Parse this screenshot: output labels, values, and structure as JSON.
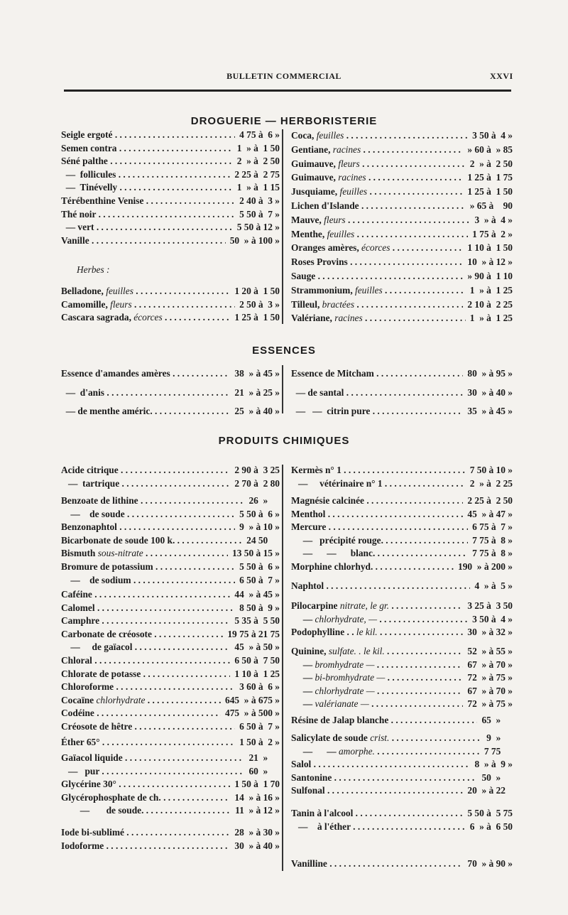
{
  "header": {
    "title": "BULLETIN COMMERCIAL",
    "page": "XXVI"
  },
  "droguerie": {
    "title": "DROGUERIE — HERBORISTERIE",
    "left": [
      {
        "name": "Seigle ergoté",
        "price": "4 75 à  6 »"
      },
      {
        "name": "Semen contra",
        "price": "1  » à  1 50"
      },
      {
        "name": "Séné palthe",
        "price": "2  » à  2 50"
      },
      {
        "name": "  —  follicules",
        "price": "2 25 à  2 75"
      },
      {
        "name": "  —  Tinévelly",
        "price": "1  » à  1 15"
      },
      {
        "name": "Térébenthine Venise",
        "price": "2 40 à  3 »"
      },
      {
        "name": "Thé noir",
        "price": "5 50 à  7 »"
      },
      {
        "name": "  — vert",
        "price": "5 50 à 12 »"
      },
      {
        "name": "Vanille",
        "price": "50  » à 100 »"
      }
    ],
    "herbes_label": "Herbes :",
    "herbes": [
      {
        "name": "Belladone, ",
        "em": "feuilles",
        "price": "1 20 à  1 50"
      },
      {
        "name": "Camomille, ",
        "em": "fleurs",
        "price": "2 50 à  3 »"
      },
      {
        "name": "Cascara sagrada, ",
        "em": "écorces",
        "price": "1 25 à  1 50"
      }
    ],
    "right": [
      {
        "name": "Coca, ",
        "em": "feuilles",
        "price": "3 50 à  4 »"
      },
      {
        "name": "Gentiane, ",
        "em": "racines",
        "price": "» 60 à  » 85"
      },
      {
        "name": "Guimauve, ",
        "em": "fleurs",
        "price": "2  » à  2 50"
      },
      {
        "name": "Guimauve, ",
        "em": "racines",
        "price": "1 25 à  1 75"
      },
      {
        "name": "Jusquiame, ",
        "em": "feuilles",
        "price": "1 25 à  1 50"
      },
      {
        "name": "Lichen d'Islande",
        "price": "» 65 à    90"
      },
      {
        "name": "Mauve, ",
        "em": "fleurs",
        "price": "3  » à  4 »"
      },
      {
        "name": "Menthe, ",
        "em": "feuilles",
        "price": "1 75 à  2 »"
      },
      {
        "name": "Oranges amères, ",
        "em": "écorces",
        "price": "1 10 à  1 50"
      },
      {
        "name": "Roses Provins",
        "price": "10  » à 12 »"
      },
      {
        "name": "Sauge",
        "price": "» 90 à  1 10"
      },
      {
        "name": "Strammonium, ",
        "em": "feuilles",
        "price": "1  » à  1 25"
      },
      {
        "name": "Tilleul, ",
        "em": "bractées",
        "price": "2 10 à  2 25"
      },
      {
        "name": "Valériane, ",
        "em": "racines",
        "price": "1  » à  1 25"
      }
    ]
  },
  "essences": {
    "title": "ESSENCES",
    "left": [
      {
        "name": "Essence d'amandes amères",
        "price": "38  » à 45 »"
      },
      {
        "name": "  —  d'anis",
        "price": "21  » à 25 »"
      },
      {
        "name": "  — de menthe améric.",
        "price": "25  » à 40 »"
      }
    ],
    "right": [
      {
        "name": "Essence de Mitcham",
        "price": "80  » à 95 »"
      },
      {
        "name": "  — de santal",
        "price": "30  » à 40 »"
      },
      {
        "name": "  —   —  citrin pure",
        "price": "35  » à 45 »"
      }
    ]
  },
  "chimiques": {
    "title": "PRODUITS CHIMIQUES",
    "left": [
      [
        {
          "name": "Acide citrique",
          "price": "2 90 à  3 25"
        },
        {
          "name": "   —  tartrique",
          "price": "2 70 à  2 80"
        }
      ],
      [
        {
          "name": "Benzoate de lithine",
          "price": "26  »     "
        },
        {
          "name": "    —    de soude",
          "price": "5 50 à  6 »"
        },
        {
          "name": "Benzonaphtol",
          "price": "9  » à 10 »"
        },
        {
          "name": "Bicarbonate de soude 100 k.",
          "price": "24 50     "
        },
        {
          "name": "Bismuth ",
          "em": "sous-nitrate",
          "price": "13 50 à 15 »"
        },
        {
          "name": "Bromure de potassium",
          "price": "5 50 à  6 »"
        },
        {
          "name": "    —    de sodium",
          "price": "6 50 à  7 »"
        }
      ],
      [
        {
          "name": "Caféine",
          "price": "44  » à 45 »"
        },
        {
          "name": "Calomel",
          "price": "8 50 à  9 »"
        },
        {
          "name": "Camphre",
          "price": "5 35 à  5 50"
        },
        {
          "name": "Carbonate de créosote",
          "price": "19 75 à 21 75"
        },
        {
          "name": "    —     de gaïacol",
          "price": "45  » à 50 »"
        },
        {
          "name": "Chloral",
          "price": "6 50 à  7 50"
        },
        {
          "name": "Chlorate de potasse",
          "price": "1 10 à  1 25"
        },
        {
          "name": "Chloroforme",
          "price": "3 60 à  6 »"
        },
        {
          "name": "Cocaïne ",
          "em": "chlorhydrate",
          "price": "645  » à 675 »"
        },
        {
          "name": "Codéine",
          "price": "475  » à 500 »"
        },
        {
          "name": "Créosote de hêtre",
          "price": "6 50 à  7 »"
        }
      ],
      [
        {
          "name": "Éther 65°",
          "price": "1 50 à  2 »"
        }
      ],
      [
        {
          "name": "Gaïacol liquide",
          "price": "21  »     "
        },
        {
          "name": "   —   pur",
          "price": "60  »     "
        },
        {
          "name": "Glycérine 30°",
          "price": "1 50 à  1 70"
        },
        {
          "name": "Glycérophosphate de ch.",
          "price": "14  » à 16 »"
        },
        {
          "name": "        —       de soude.",
          "price": "11  » à 12 »"
        }
      ],
      [
        {
          "name": "Iode bi-sublimé",
          "price": "28  » à 30 »"
        },
        {
          "name": "Iodoforme",
          "price": "30  » à 40 »"
        }
      ]
    ],
    "right": [
      [
        {
          "name": "Kermès n° 1",
          "price": "7 50 à 10 »"
        },
        {
          "name": "   —     vétérinaire n° 1",
          "price": "2  » à  2 25"
        }
      ],
      [
        {
          "name": "Magnésie calcinée",
          "price": "2 25 à  2 50"
        },
        {
          "name": "Menthol",
          "price": "45  » à 47 »"
        },
        {
          "name": "Mercure",
          "price": "6 75 à  7 »"
        },
        {
          "name": "     —   précipité rouge.",
          "price": "7 75 à  8 »"
        },
        {
          "name": "     —      —      blanc.",
          "price": "7 75 à  8 »"
        },
        {
          "name": "Morphine chlorhyd.",
          "price": "190  » à 200 »"
        }
      ],
      [
        {
          "name": "Naphtol",
          "price": "4  » à  5 »"
        }
      ],
      [
        {
          "name": "Pilocarpine ",
          "em": "nitrate, le gr.",
          "price": "3 25 à  3 50"
        },
        {
          "name": "     — ",
          "em": "chlorhydrate, —",
          "price": "3 50 à  4 »"
        },
        {
          "name": "Podophylline . . ",
          "em": "le kil.",
          "price": "30  » à 32 »"
        }
      ],
      [
        {
          "name": "Quinine, ",
          "em": "sulfate. . le kil.",
          "price": "52  » à 55 »"
        },
        {
          "name": "     — ",
          "em": "bromhydrate  —",
          "price": "67  » à 70 »"
        },
        {
          "name": "     — ",
          "em": "bi-bromhydrate —",
          "price": "72  » à 75 »"
        },
        {
          "name": "     — ",
          "em": "chlorhydrate  —",
          "price": "67  » à 70 »"
        },
        {
          "name": "     — ",
          "em": "valérianate   —",
          "price": "72  » à 75 »"
        }
      ],
      [
        {
          "name": "Résine de Jalap blanche",
          "price": "65  »     "
        }
      ],
      [
        {
          "name": "Salicylate de soude ",
          "em": "crist.",
          "price": "9  »     "
        },
        {
          "name": "     —      — ",
          "em": "amorphe.",
          "price": "7 75     "
        },
        {
          "name": "Salol",
          "price": "8  » à  9 »"
        },
        {
          "name": "Santonine",
          "price": "50  »     "
        },
        {
          "name": "Sulfonal",
          "price": "20  » à 22   "
        }
      ],
      [
        {
          "name": "Tanin à l'alcool",
          "price": "5 50 à  5 75"
        },
        {
          "name": "   —    à l'éther",
          "price": "6  » à  6 50"
        }
      ],
      [
        {
          "name": "Vanilline",
          "price": "70  » à 90 »"
        }
      ]
    ]
  }
}
